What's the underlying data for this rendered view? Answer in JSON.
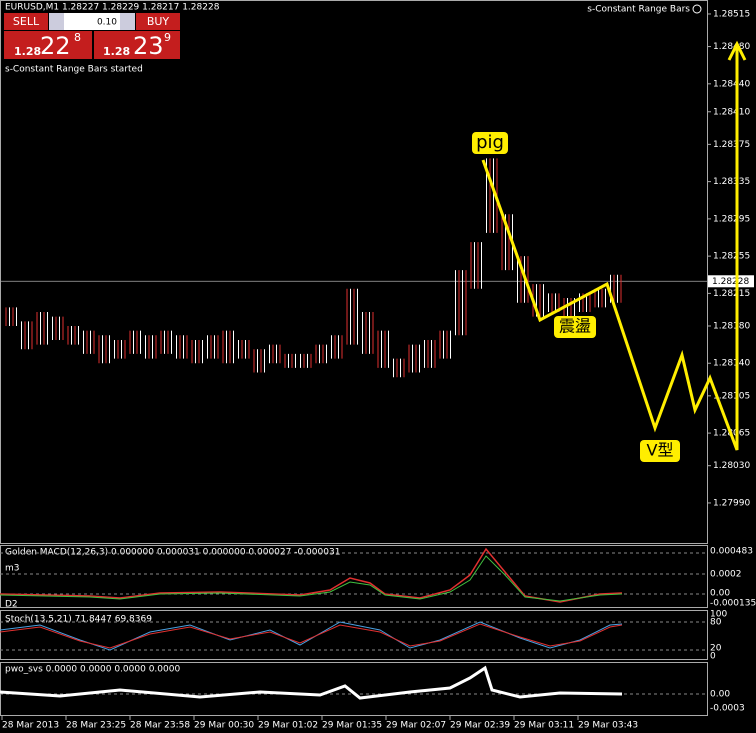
{
  "header": {
    "symbol_info": "EURUSD,M1  1.28227  1.28229  1.28217  1.28228",
    "indicator_status": "s-Constant Range Bars",
    "started_msg": "s-Constant Range Bars started"
  },
  "trade_panel": {
    "sell": "SELL",
    "buy": "BUY",
    "lot": "0.10",
    "sell_big": "1.28",
    "sell_pips": "22",
    "sell_point": "8",
    "buy_big": "1.28",
    "buy_pips": "23",
    "buy_point": "9"
  },
  "price_axis": {
    "ylim": [
      1.27947,
      1.2853
    ],
    "ticks": [
      1.28515,
      {
        "value": 1.2848,
        "label": "1.28480"
      },
      {
        "value": 1.2844,
        "label": "1.28440"
      },
      {
        "value": 1.2841,
        "label": "1.28410"
      },
      1.28375,
      1.28335,
      1.28295,
      1.28255,
      1.28215,
      {
        "value": 1.2818,
        "label": "1.28180"
      },
      {
        "value": 1.2814,
        "label": "1.28140"
      },
      1.28105,
      1.28065,
      {
        "value": 1.2803,
        "label": "1.28030"
      },
      {
        "value": 1.2799,
        "label": "1.27990"
      }
    ],
    "current_price": 1.28228
  },
  "bars": {
    "low": [
      1.2818,
      1.28155,
      1.2816,
      1.28165,
      1.2816,
      1.2815,
      1.2814,
      1.28145,
      1.2815,
      1.28145,
      1.2815,
      1.28145,
      1.2814,
      1.28145,
      1.2814,
      1.28145,
      1.2813,
      1.2814,
      1.28135,
      1.28135,
      1.2814,
      1.28145,
      1.2816,
      1.2815,
      1.28135,
      1.28125,
      1.2813,
      1.28135,
      1.28145,
      1.2817,
      1.2822,
      1.2828,
      1.2824,
      1.28205,
      1.2819,
      1.28195,
      1.2819,
      1.28195,
      1.282,
      1.28205
    ],
    "high": [
      1.282,
      1.28185,
      1.28195,
      1.2819,
      1.2818,
      1.28175,
      1.2817,
      1.28165,
      1.28175,
      1.2817,
      1.28175,
      1.2817,
      1.28165,
      1.2817,
      1.28175,
      1.28165,
      1.28155,
      1.2816,
      1.2815,
      1.2815,
      1.2816,
      1.2817,
      1.2822,
      1.28195,
      1.28175,
      1.28145,
      1.2816,
      1.28165,
      1.28175,
      1.2824,
      1.2827,
      1.2836,
      1.283,
      1.28255,
      1.28225,
      1.28215,
      1.2821,
      1.28215,
      1.2822,
      1.28235
    ]
  },
  "time_axis": [
    "28 Mar 2013",
    "28 Mar 23:25",
    "28 Mar 23:58",
    "29 Mar 00:30",
    "29 Mar 01:02",
    "29 Mar 01:35",
    "29 Mar 02:07",
    "29 Mar 02:39",
    "29 Mar 03:11",
    "29 Mar 03:43"
  ],
  "annotations": {
    "peak": "pig",
    "range": "震盪",
    "v_shape": "V型"
  },
  "indicators": {
    "macd": {
      "title": "Golden MACD(12,26,3) 0.000000 0.000031 0.000000 0.000027 -0.000031",
      "tag_top": "m3",
      "tag_bottom": "D2",
      "scale": [
        "0.000483",
        "0.0002",
        "0.00",
        "-0.000135"
      ]
    },
    "stoch": {
      "title": "Stoch(13,5,21) 71.8447 69.8369",
      "scale": [
        "100",
        "80",
        "20",
        "0"
      ]
    },
    "pwo": {
      "title": "pwo_svs 0.0000 0.0000 0.0000 0.0000",
      "scale": [
        "0.00",
        "-0.0003"
      ]
    }
  }
}
